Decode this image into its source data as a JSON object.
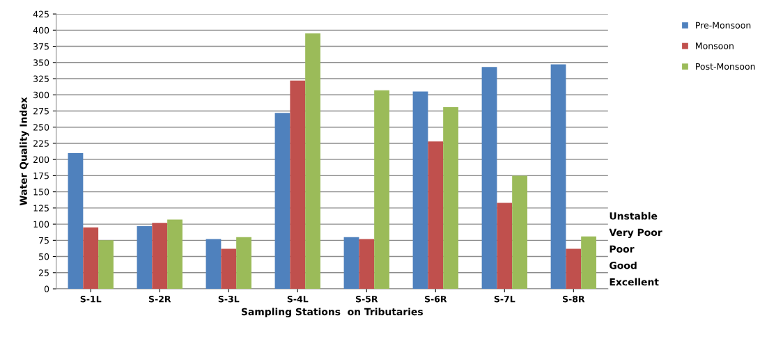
{
  "chart_data": {
    "type": "bar",
    "xlabel": "Sampling Stations  on Tributaries",
    "ylabel": "Water Quality Index",
    "categories": [
      "S-1L",
      "S-2R",
      "S-3L",
      "S-4L",
      "S-5R",
      "S-6R",
      "S-7L",
      "S-8R"
    ],
    "series": [
      {
        "name": "Pre-Monsoon",
        "color": "#4f81bd",
        "values": [
          210,
          97,
          77,
          272,
          80,
          305,
          343,
          347
        ]
      },
      {
        "name": "Monsoon",
        "color": "#c0504d",
        "values": [
          95,
          102,
          62,
          322,
          77,
          228,
          133,
          62
        ]
      },
      {
        "name": "Post-Monsoon",
        "color": "#9bbb59",
        "values": [
          75,
          107,
          80,
          395,
          307,
          281,
          175,
          81
        ]
      }
    ],
    "ylim": [
      0,
      425
    ],
    "yticks": [
      0,
      25,
      50,
      75,
      100,
      125,
      150,
      175,
      200,
      225,
      250,
      275,
      300,
      325,
      350,
      375,
      400,
      425
    ],
    "grid": "y",
    "legend": "top right",
    "annotations": [
      "Unstable",
      "Very Poor",
      "Poor",
      "Good",
      "Excellent"
    ]
  }
}
